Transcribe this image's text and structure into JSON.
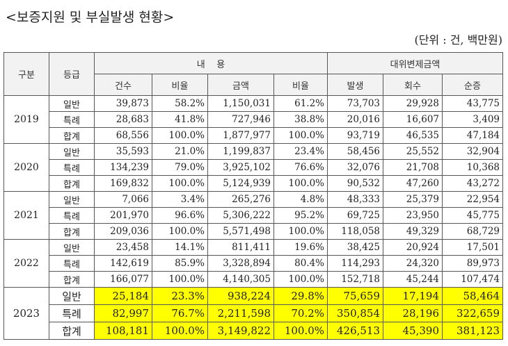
{
  "title": "<보증지원 및 부실발생 현황>",
  "unit": "(단위 : 건, 백만원)",
  "header": {
    "col_year": "구분",
    "col_grade": "등급",
    "group_content": "내    용",
    "group_subrogation": "대위변제금액",
    "sub": [
      "건수",
      "비율",
      "금액",
      "비율",
      "발생",
      "회수",
      "순증"
    ]
  },
  "highlight_color": "#ffff00",
  "years": [
    {
      "year": "2019",
      "rows": [
        [
          "일반",
          "39,873",
          "58.2%",
          "1,150,031",
          "61.2%",
          "73,703",
          "29,928",
          "43,775"
        ],
        [
          "특례",
          "28,683",
          "41.8%",
          "727,946",
          "38.8%",
          "20,016",
          "16,607",
          "3,409"
        ],
        [
          "합계",
          "68,556",
          "100.0%",
          "1,877,977",
          "100.0%",
          "93,719",
          "46,535",
          "47,184"
        ]
      ]
    },
    {
      "year": "2020",
      "rows": [
        [
          "일반",
          "35,593",
          "21.0%",
          "1,199,837",
          "23.4%",
          "58,456",
          "25,552",
          "32,904"
        ],
        [
          "특례",
          "134,239",
          "79.0%",
          "3,925,102",
          "76.6%",
          "32,076",
          "21,708",
          "10,368"
        ],
        [
          "합계",
          "169,832",
          "100.0%",
          "5,124,939",
          "100.0%",
          "90,532",
          "47,260",
          "43,272"
        ]
      ]
    },
    {
      "year": "2021",
      "rows": [
        [
          "일반",
          "7,066",
          "3.4%",
          "265,276",
          "4.8%",
          "48,333",
          "25,379",
          "22,954"
        ],
        [
          "특례",
          "201,970",
          "96.6%",
          "5,306,222",
          "95.2%",
          "69,725",
          "23,950",
          "45,775"
        ],
        [
          "합계",
          "209,036",
          "100.0%",
          "5,571,498",
          "100.0%",
          "118,058",
          "49,329",
          "68,729"
        ]
      ]
    },
    {
      "year": "2022",
      "rows": [
        [
          "일반",
          "23,458",
          "14.1%",
          "811,411",
          "19.6%",
          "38,425",
          "20,924",
          "17,501"
        ],
        [
          "특례",
          "142,619",
          "85.9%",
          "3,328,894",
          "80.4%",
          "114,293",
          "24,320",
          "89,973"
        ],
        [
          "합계",
          "166,077",
          "100.0%",
          "4,140,305",
          "100.0%",
          "152,718",
          "45,244",
          "107,474"
        ]
      ]
    },
    {
      "year": "2023",
      "highlighted": true,
      "rows": [
        [
          "일반",
          "25,184",
          "23.3%",
          "938,224",
          "29.8%",
          "75,659",
          "17,194",
          "58,464"
        ],
        [
          "특례",
          "82,997",
          "76.7%",
          "2,211,598",
          "70.2%",
          "350,854",
          "28,196",
          "322,659"
        ],
        [
          "합계",
          "108,181",
          "100.0%",
          "3,149,822",
          "100.0%",
          "426,513",
          "45,390",
          "381,123"
        ]
      ]
    }
  ]
}
